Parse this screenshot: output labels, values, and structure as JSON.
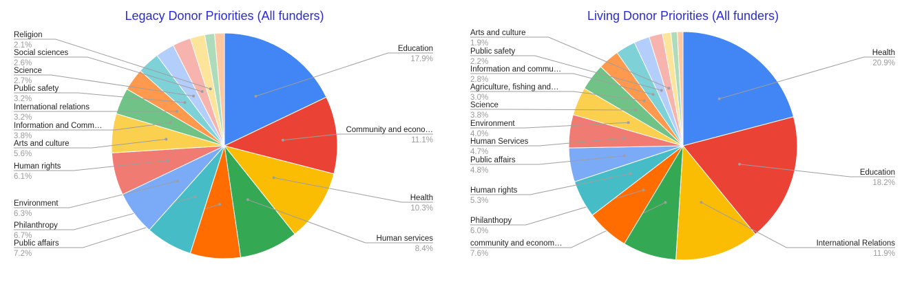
{
  "chart_data": [
    {
      "type": "pie",
      "title": "Legacy Donor Priorities (All funders)",
      "slices": [
        {
          "label": "Education",
          "value": 17.9,
          "value_label": "17.9%",
          "color": "#4285f4"
        },
        {
          "label": "Community and econo…",
          "value": 11.1,
          "value_label": "11.1%",
          "color": "#ea4335"
        },
        {
          "label": "Health",
          "value": 10.3,
          "value_label": "10.3%",
          "color": "#fbbc04"
        },
        {
          "label": "Human services",
          "value": 8.4,
          "value_label": "8.4%",
          "color": "#34a853"
        },
        {
          "label": "Public affairs",
          "value": 7.2,
          "value_label": "7.2%",
          "color": "#ff6d01"
        },
        {
          "label": "Philanthropy",
          "value": 6.7,
          "value_label": "6.7%",
          "color": "#46bdc6"
        },
        {
          "label": "Environment",
          "value": 6.3,
          "value_label": "6.3%",
          "color": "#7baaf7"
        },
        {
          "label": "Human rights",
          "value": 6.1,
          "value_label": "6.1%",
          "color": "#f07b72"
        },
        {
          "label": "Arts and culture",
          "value": 5.6,
          "value_label": "5.6%",
          "color": "#fcd04f"
        },
        {
          "label": "Information and Comm…",
          "value": 3.8,
          "value_label": "3.8%",
          "color": "#71c287"
        },
        {
          "label": "International relations",
          "value": 3.2,
          "value_label": "3.2%",
          "color": "#ff994d"
        },
        {
          "label": "Public safety",
          "value": 3.2,
          "value_label": "3.2%",
          "color": "#7ed1d7"
        },
        {
          "label": "Science",
          "value": 2.7,
          "value_label": "2.7%",
          "color": "#b3cefb"
        },
        {
          "label": "Social sciences",
          "value": 2.6,
          "value_label": "2.6%",
          "color": "#f7b4ae"
        },
        {
          "label": "Religion",
          "value": 2.1,
          "value_label": "2.1%",
          "color": "#fde49b"
        },
        {
          "label": "",
          "value": 1.4,
          "value_label": "",
          "color": "#aedcba"
        },
        {
          "label": "",
          "value": 1.4,
          "value_label": "",
          "color": "#ffc8a0"
        }
      ]
    },
    {
      "type": "pie",
      "title": "Living Donor Priorities (All funders)",
      "slices": [
        {
          "label": "Health",
          "value": 20.9,
          "value_label": "20.9%",
          "color": "#4285f4"
        },
        {
          "label": "Education",
          "value": 18.2,
          "value_label": "18.2%",
          "color": "#ea4335"
        },
        {
          "label": "International Relations",
          "value": 11.9,
          "value_label": "11.9%",
          "color": "#fbbc04"
        },
        {
          "label": "community and econom…",
          "value": 7.6,
          "value_label": "7.6%",
          "color": "#34a853"
        },
        {
          "label": "Philanthopy",
          "value": 6.0,
          "value_label": "6.0%",
          "color": "#ff6d01"
        },
        {
          "label": "Human rights",
          "value": 5.3,
          "value_label": "5.3%",
          "color": "#46bdc6"
        },
        {
          "label": "Public affairs",
          "value": 4.8,
          "value_label": "4.8%",
          "color": "#7baaf7"
        },
        {
          "label": "Human Services",
          "value": 4.7,
          "value_label": "4.7%",
          "color": "#f07b72"
        },
        {
          "label": "Environment",
          "value": 4.0,
          "value_label": "4.0%",
          "color": "#fcd04f"
        },
        {
          "label": "Science",
          "value": 3.8,
          "value_label": "3.8%",
          "color": "#71c287"
        },
        {
          "label": "Agriculture, fishing and…",
          "value": 3.0,
          "value_label": "3.0%",
          "color": "#ff994d"
        },
        {
          "label": "Information and commu…",
          "value": 2.8,
          "value_label": "2.8%",
          "color": "#7ed1d7"
        },
        {
          "label": "Public safety",
          "value": 2.2,
          "value_label": "2.2%",
          "color": "#b3cefb"
        },
        {
          "label": "Arts and culture",
          "value": 1.9,
          "value_label": "1.9%",
          "color": "#f7b4ae"
        },
        {
          "label": "",
          "value": 1.2,
          "value_label": "",
          "color": "#fde49b"
        },
        {
          "label": "",
          "value": 0.9,
          "value_label": "",
          "color": "#aedcba"
        },
        {
          "label": "",
          "value": 0.8,
          "value_label": "",
          "color": "#ffc8a0"
        }
      ]
    }
  ]
}
